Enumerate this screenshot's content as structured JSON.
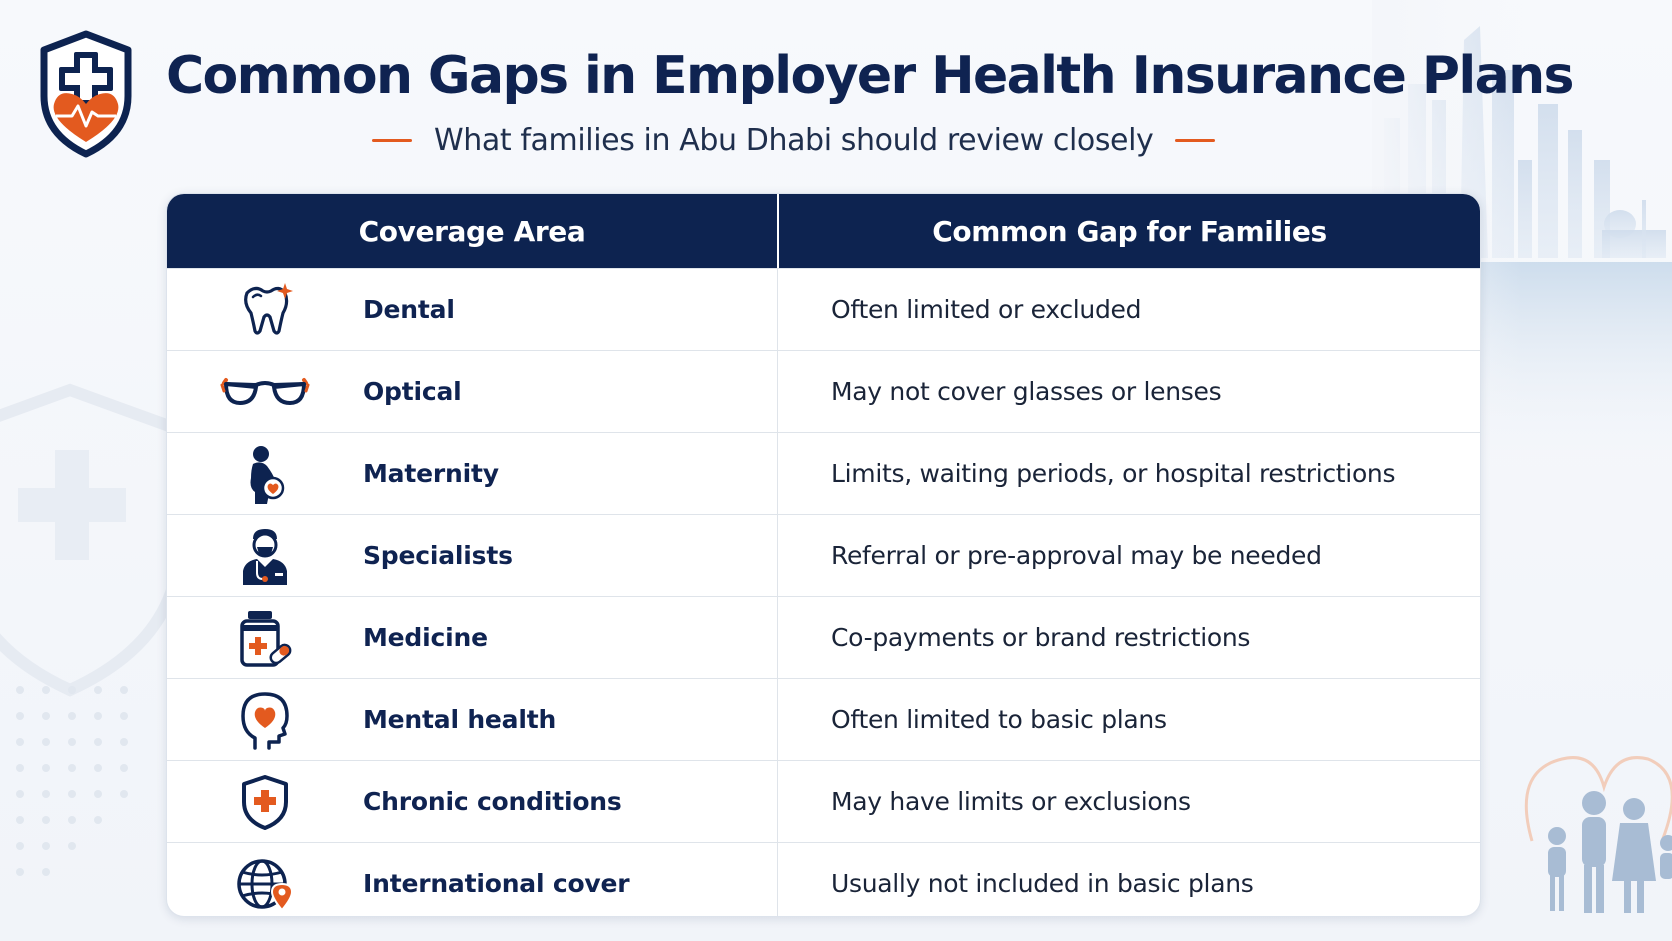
{
  "header": {
    "title": "Common Gaps in Employer Health Insurance Plans",
    "subtitle": "What families in Abu Dhabi should review closely"
  },
  "colors": {
    "navy": "#0d2350",
    "accent_orange": "#e35a1f",
    "row_border": "#dfe4ea"
  },
  "table": {
    "columns": [
      "Coverage Area",
      "Common Gap for Families"
    ],
    "rows": [
      {
        "icon": "tooth-icon",
        "area": "Dental",
        "gap": "Often limited or excluded"
      },
      {
        "icon": "glasses-icon",
        "area": "Optical",
        "gap": "May not cover glasses or lenses"
      },
      {
        "icon": "pregnant-woman-icon",
        "area": "Maternity",
        "gap": "Limits, waiting periods, or hospital restrictions"
      },
      {
        "icon": "doctor-icon",
        "area": "Specialists",
        "gap": "Referral or pre-approval may be needed"
      },
      {
        "icon": "medicine-bottle-icon",
        "area": "Medicine",
        "gap": "Co-payments or brand restrictions"
      },
      {
        "icon": "head-heart-icon",
        "area": "Mental health",
        "gap": "Often limited to basic plans"
      },
      {
        "icon": "shield-cross-icon",
        "area": "Chronic conditions",
        "gap": "May have limits or exclusions"
      },
      {
        "icon": "globe-pin-icon",
        "area": "International cover",
        "gap": "Usually not included in basic plans"
      }
    ]
  }
}
